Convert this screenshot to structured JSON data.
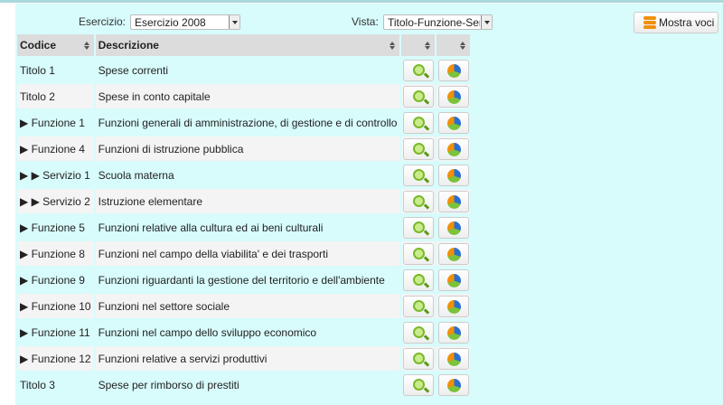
{
  "filters": {
    "esercizio_label": "Esercizio:",
    "esercizio_value": "Esercizio 2008",
    "vista_label": "Vista:",
    "vista_value": "Titolo-Funzione-Servi",
    "mostra_voci": "Mostra voci"
  },
  "table": {
    "headers": [
      "Codice",
      "Descrizione",
      "",
      ""
    ],
    "rows": [
      {
        "codice": "Titolo 1",
        "descrizione": "Spese correnti"
      },
      {
        "codice": "Titolo 2",
        "descrizione": "Spese in conto capitale"
      },
      {
        "codice": "▶ Funzione 1",
        "descrizione": "Funzioni generali di amministrazione, di gestione e di controllo"
      },
      {
        "codice": "▶ Funzione 4",
        "descrizione": "Funzioni di istruzione pubblica"
      },
      {
        "codice": "▶ ▶ Servizio 1",
        "descrizione": "Scuola materna"
      },
      {
        "codice": "▶ ▶ Servizio 2",
        "descrizione": "Istruzione elementare"
      },
      {
        "codice": "▶ Funzione 5",
        "descrizione": "Funzioni relative alla cultura ed ai beni culturali"
      },
      {
        "codice": "▶ Funzione 8",
        "descrizione": "Funzioni nel campo della viabilita' e dei trasporti"
      },
      {
        "codice": "▶ Funzione 9",
        "descrizione": "Funzioni riguardanti la gestione del territorio e dell'ambiente"
      },
      {
        "codice": "▶ Funzione 10",
        "descrizione": "Funzioni nel settore sociale"
      },
      {
        "codice": "▶ Funzione 11",
        "descrizione": "Funzioni nel campo dello sviluppo economico"
      },
      {
        "codice": "▶ Funzione 12",
        "descrizione": "Funzioni relative a servizi produttivi"
      },
      {
        "codice": "Titolo 3",
        "descrizione": "Spese per rimborso di prestiti"
      }
    ]
  },
  "colors": {
    "background": "#d8fbfb",
    "header": "#dcdcdc",
    "zoom_icon": "#7ab82a",
    "pie_icon": "#f0900a"
  }
}
